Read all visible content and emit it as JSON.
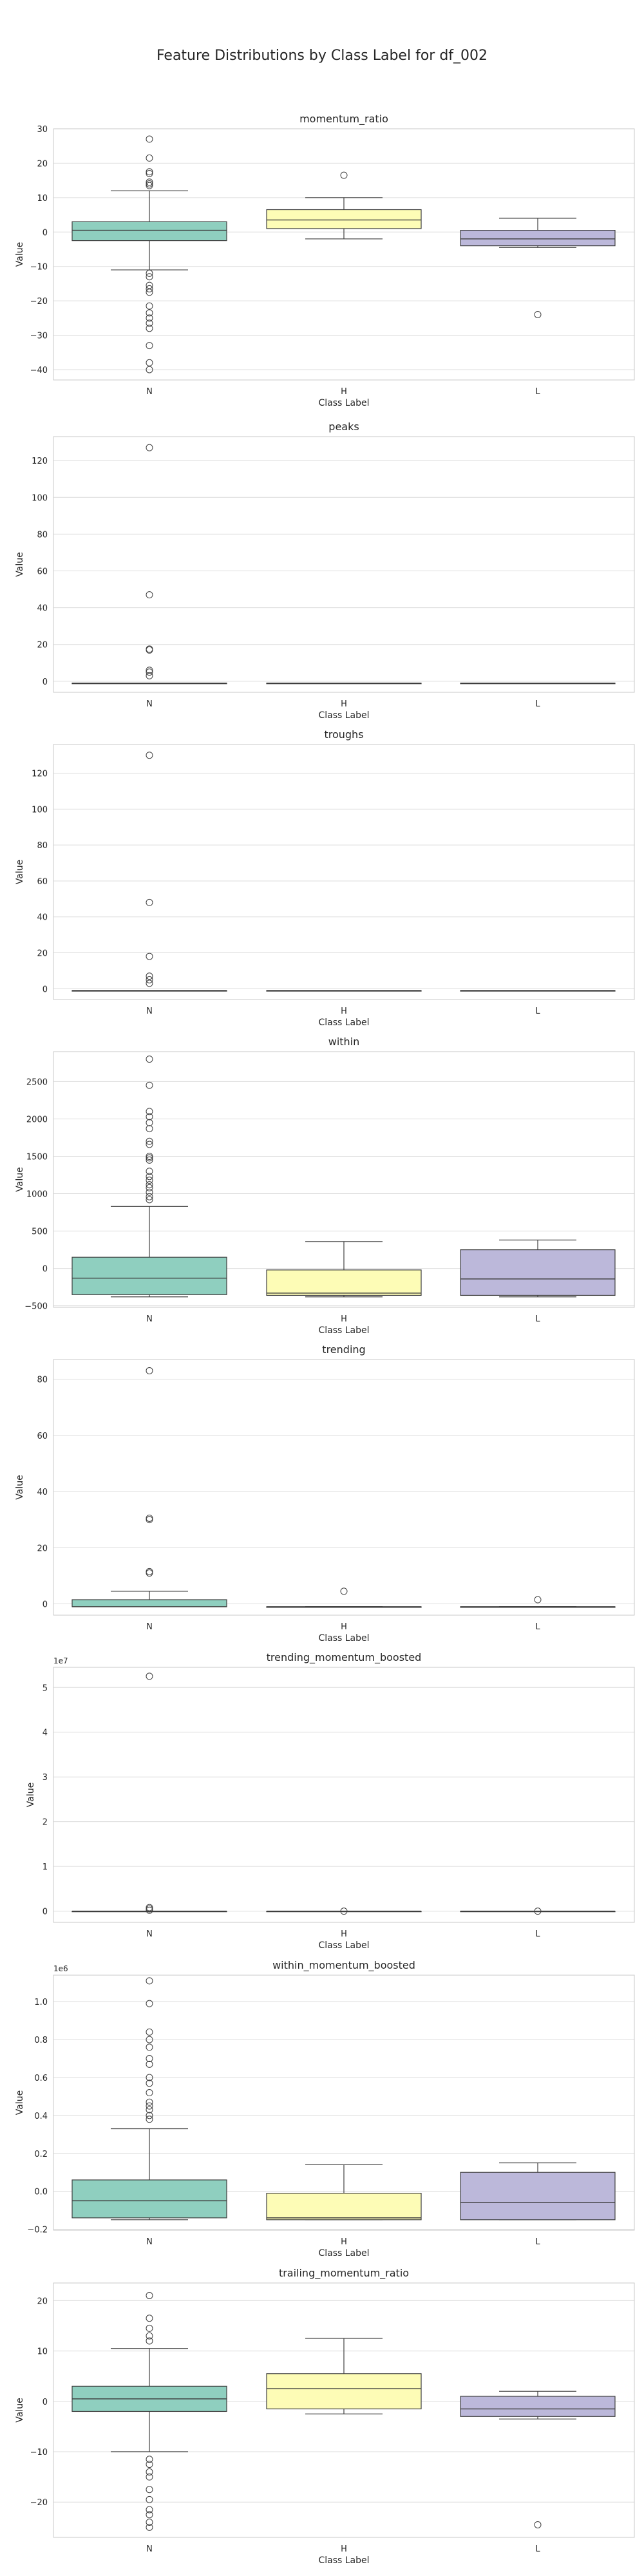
{
  "title": "Feature Distributions by Class Label for df_002",
  "colors": {
    "N": "#8fcfbf",
    "H": "#fdfcb6",
    "L": "#bcb8da",
    "grid": "#dcdcdc",
    "frame": "#c8c8c8"
  },
  "chart_data": [
    {
      "type": "box",
      "title": "momentum_ratio",
      "xlabel": "Class Label",
      "ylabel": "Value",
      "categories": [
        "N",
        "H",
        "L"
      ],
      "ylim": [
        -43,
        30
      ],
      "yticks": [
        30,
        20,
        10,
        0,
        -10,
        -20,
        -30,
        -40
      ],
      "tick_labels": [
        "30",
        "20",
        "10",
        "0",
        "−10",
        "−20",
        "−30",
        "−40"
      ],
      "offset_text": "",
      "boxes": [
        {
          "q1": -2.5,
          "median": 0.5,
          "q3": 3.0,
          "whislo": -11.0,
          "whishi": 12.0,
          "fliers": [
            27,
            21.5,
            17.5,
            17,
            14.5,
            14,
            13.5,
            -12,
            -13,
            -15.5,
            -16.5,
            -17.5,
            -21.5,
            -23.5,
            -25,
            -26.5,
            -28,
            -33,
            -38,
            -40
          ]
        },
        {
          "q1": 1.0,
          "median": 3.5,
          "q3": 6.5,
          "whislo": -2.0,
          "whishi": 10.0,
          "fliers": [
            16.5
          ]
        },
        {
          "q1": -4.0,
          "median": -2.0,
          "q3": 0.5,
          "whislo": -4.5,
          "whishi": 4.0,
          "fliers": [
            -24
          ]
        }
      ]
    },
    {
      "type": "box",
      "title": "peaks",
      "xlabel": "Class Label",
      "ylabel": "Value",
      "categories": [
        "N",
        "H",
        "L"
      ],
      "ylim": [
        -6,
        133
      ],
      "yticks": [
        120,
        100,
        80,
        60,
        40,
        20,
        0
      ],
      "tick_labels": [
        "120",
        "100",
        "80",
        "60",
        "40",
        "20",
        "0"
      ],
      "offset_text": "",
      "boxes": [
        {
          "q1": -1,
          "median": -1,
          "q3": -1,
          "whislo": -1,
          "whishi": -1,
          "fliers": [
            127,
            47,
            17.5,
            17,
            6,
            5,
            3
          ]
        },
        {
          "q1": -1,
          "median": -1,
          "q3": -1,
          "whislo": -1,
          "whishi": -1,
          "fliers": []
        },
        {
          "q1": -1,
          "median": -1,
          "q3": -1,
          "whislo": -1,
          "whishi": -1,
          "fliers": []
        }
      ]
    },
    {
      "type": "box",
      "title": "troughs",
      "xlabel": "Class Label",
      "ylabel": "Value",
      "categories": [
        "N",
        "H",
        "L"
      ],
      "ylim": [
        -6,
        136
      ],
      "yticks": [
        120,
        100,
        80,
        60,
        40,
        20,
        0
      ],
      "tick_labels": [
        "120",
        "100",
        "80",
        "60",
        "40",
        "20",
        "0"
      ],
      "offset_text": "",
      "boxes": [
        {
          "q1": -1,
          "median": -1,
          "q3": -1,
          "whislo": -1,
          "whishi": -1,
          "fliers": [
            130,
            48,
            18,
            7,
            5,
            3
          ]
        },
        {
          "q1": -1,
          "median": -1,
          "q3": -1,
          "whislo": -1,
          "whishi": -1,
          "fliers": []
        },
        {
          "q1": -1,
          "median": -1,
          "q3": -1,
          "whislo": -1,
          "whishi": -1,
          "fliers": []
        }
      ]
    },
    {
      "type": "box",
      "title": "within",
      "xlabel": "Class Label",
      "ylabel": "Value",
      "categories": [
        "N",
        "H",
        "L"
      ],
      "ylim": [
        -520,
        2900
      ],
      "yticks": [
        2500,
        2000,
        1500,
        1000,
        500,
        0,
        -500
      ],
      "tick_labels": [
        "2500",
        "2000",
        "1500",
        "1000",
        "500",
        "0",
        "−500"
      ],
      "offset_text": "",
      "boxes": [
        {
          "q1": -350,
          "median": -130,
          "q3": 150,
          "whislo": -380,
          "whishi": 830,
          "fliers": [
            2800,
            2450,
            2100,
            2030,
            1950,
            1870,
            1700,
            1660,
            1500,
            1480,
            1450,
            1300,
            1230,
            1180,
            1120,
            1080,
            1020,
            960,
            920
          ]
        },
        {
          "q1": -360,
          "median": -330,
          "q3": -20,
          "whislo": -380,
          "whishi": 360,
          "fliers": []
        },
        {
          "q1": -360,
          "median": -140,
          "q3": 250,
          "whislo": -380,
          "whishi": 380,
          "fliers": []
        }
      ]
    },
    {
      "type": "box",
      "title": "trending",
      "xlabel": "Class Label",
      "ylabel": "Value",
      "categories": [
        "N",
        "H",
        "L"
      ],
      "ylim": [
        -4,
        87
      ],
      "yticks": [
        80,
        60,
        40,
        20,
        0
      ],
      "tick_labels": [
        "80",
        "60",
        "40",
        "20",
        "0"
      ],
      "offset_text": "",
      "boxes": [
        {
          "q1": -1,
          "median": -1,
          "q3": 1.5,
          "whislo": -1,
          "whishi": 4.5,
          "fliers": [
            83,
            30.5,
            30,
            11.5,
            11
          ]
        },
        {
          "q1": -1,
          "median": -1,
          "q3": -1,
          "whislo": -1,
          "whishi": -1,
          "fliers": [
            4.5
          ]
        },
        {
          "q1": -1,
          "median": -1,
          "q3": -1,
          "whislo": -1,
          "whishi": -1,
          "fliers": [
            1.5
          ]
        }
      ]
    },
    {
      "type": "box",
      "title": "trending_momentum_boosted",
      "xlabel": "Class Label",
      "ylabel": "Value",
      "categories": [
        "N",
        "H",
        "L"
      ],
      "ylim": [
        -0.25,
        5.45
      ],
      "yticks": [
        5,
        4,
        3,
        2,
        1,
        0
      ],
      "tick_labels": [
        "5",
        "4",
        "3",
        "2",
        "1",
        "0"
      ],
      "offset_text": "1e7",
      "boxes": [
        {
          "q1": 0,
          "median": 0,
          "q3": 0,
          "whislo": 0,
          "whishi": 0,
          "fliers": [
            5.25,
            0.08,
            0.05,
            0.02
          ]
        },
        {
          "q1": 0,
          "median": 0,
          "q3": 0,
          "whislo": 0,
          "whishi": 0,
          "fliers": [
            0
          ]
        },
        {
          "q1": 0,
          "median": 0,
          "q3": 0,
          "whislo": 0,
          "whishi": 0,
          "fliers": [
            0
          ]
        }
      ]
    },
    {
      "type": "box",
      "title": "within_momentum_boosted",
      "xlabel": "Class Label",
      "ylabel": "Value",
      "categories": [
        "N",
        "H",
        "L"
      ],
      "ylim": [
        -0.205,
        1.14
      ],
      "yticks": [
        1.0,
        0.8,
        0.6,
        0.4,
        0.2,
        0.0,
        -0.2
      ],
      "tick_labels": [
        "1.0",
        "0.8",
        "0.6",
        "0.4",
        "0.2",
        "0.0",
        "−0.2"
      ],
      "offset_text": "1e6",
      "boxes": [
        {
          "q1": -0.14,
          "median": -0.05,
          "q3": 0.06,
          "whislo": -0.15,
          "whishi": 0.33,
          "fliers": [
            1.11,
            0.99,
            0.84,
            0.8,
            0.76,
            0.7,
            0.67,
            0.6,
            0.57,
            0.52,
            0.47,
            0.45,
            0.43,
            0.4,
            0.38
          ]
        },
        {
          "q1": -0.15,
          "median": -0.14,
          "q3": -0.01,
          "whislo": -0.15,
          "whishi": 0.14,
          "fliers": []
        },
        {
          "q1": -0.15,
          "median": -0.06,
          "q3": 0.1,
          "whislo": -0.15,
          "whishi": 0.15,
          "fliers": []
        }
      ]
    },
    {
      "type": "box",
      "title": "trailing_momentum_ratio",
      "xlabel": "Class Label",
      "ylabel": "Value",
      "categories": [
        "N",
        "H",
        "L"
      ],
      "ylim": [
        -27,
        23.5
      ],
      "yticks": [
        20,
        10,
        0,
        -10,
        -20
      ],
      "tick_labels": [
        "20",
        "10",
        "0",
        "−10",
        "−20"
      ],
      "offset_text": "",
      "boxes": [
        {
          "q1": -2.0,
          "median": 0.5,
          "q3": 3.0,
          "whislo": -10.0,
          "whishi": 10.5,
          "fliers": [
            21,
            16.5,
            14.5,
            13,
            12,
            -11.5,
            -12.5,
            -14,
            -15,
            -17.5,
            -19.5,
            -21.5,
            -22.5,
            -24,
            -25
          ]
        },
        {
          "q1": -1.5,
          "median": 2.5,
          "q3": 5.5,
          "whislo": -2.5,
          "whishi": 12.5,
          "fliers": []
        },
        {
          "q1": -3.0,
          "median": -1.5,
          "q3": 1.0,
          "whislo": -3.5,
          "whishi": 2.0,
          "fliers": [
            -24.5
          ]
        }
      ]
    }
  ]
}
